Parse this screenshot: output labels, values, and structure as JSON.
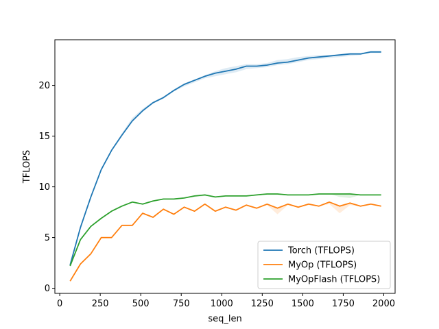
{
  "chart_data": {
    "type": "line",
    "title": "",
    "xlabel": "seq_len",
    "ylabel": "TFLOPS",
    "xlim": [
      -30,
      2070
    ],
    "ylim": [
      -0.5,
      24.5
    ],
    "xticks": [
      0,
      250,
      500,
      750,
      1000,
      1250,
      1500,
      1750,
      2000
    ],
    "yticks": [
      0,
      5,
      10,
      15,
      20
    ],
    "grid": false,
    "legend_position": "lower-right",
    "x": [
      64,
      128,
      192,
      256,
      320,
      384,
      448,
      512,
      576,
      640,
      704,
      768,
      832,
      896,
      960,
      1024,
      1088,
      1152,
      1216,
      1280,
      1344,
      1408,
      1472,
      1536,
      1600,
      1664,
      1728,
      1792,
      1856,
      1920,
      1984
    ],
    "series": [
      {
        "name": "Torch (TFLOPS)",
        "color": "#1f77b4",
        "values": [
          2.3,
          6.0,
          9.0,
          11.7,
          13.6,
          15.1,
          16.5,
          17.5,
          18.3,
          18.8,
          19.5,
          20.1,
          20.5,
          20.9,
          21.2,
          21.4,
          21.6,
          21.9,
          21.9,
          22.0,
          22.2,
          22.3,
          22.5,
          22.7,
          22.8,
          22.9,
          23.0,
          23.1,
          23.1,
          23.3,
          23.3
        ],
        "band_low": [
          2.3,
          6.0,
          9.0,
          11.7,
          13.6,
          15.0,
          16.4,
          17.4,
          18.2,
          18.7,
          19.4,
          19.9,
          20.3,
          20.7,
          20.9,
          21.1,
          21.3,
          21.6,
          21.7,
          21.8,
          22.0,
          22.1,
          22.3,
          22.5,
          22.6,
          22.7,
          22.8,
          22.9,
          23.0,
          23.2,
          23.2
        ],
        "band_high": [
          2.3,
          6.1,
          9.1,
          11.8,
          13.7,
          15.3,
          16.8,
          17.7,
          18.4,
          18.9,
          19.6,
          20.2,
          20.6,
          21.0,
          21.4,
          21.7,
          21.9,
          22.1,
          22.1,
          22.2,
          22.5,
          22.6,
          22.8,
          22.9,
          23.0,
          23.0,
          23.1,
          23.2,
          23.2,
          23.4,
          23.4
        ]
      },
      {
        "name": "MyOp (TFLOPS)",
        "color": "#ff7f0e",
        "values": [
          0.7,
          2.4,
          3.4,
          5.0,
          5.0,
          6.2,
          6.2,
          7.4,
          7.0,
          7.8,
          7.3,
          8.0,
          7.6,
          8.3,
          7.6,
          8.0,
          7.7,
          8.2,
          7.9,
          8.3,
          7.9,
          8.3,
          8.0,
          8.3,
          8.1,
          8.5,
          8.1,
          8.4,
          8.1,
          8.3,
          8.1
        ],
        "band_low": [
          0.7,
          2.4,
          3.4,
          5.0,
          5.0,
          6.2,
          6.2,
          7.4,
          7.0,
          7.8,
          7.3,
          8.0,
          7.6,
          8.3,
          7.6,
          8.0,
          7.7,
          8.2,
          7.9,
          8.2,
          7.3,
          8.2,
          8.0,
          8.2,
          8.1,
          8.3,
          7.4,
          8.2,
          8.1,
          8.3,
          8.1
        ],
        "band_high": [
          0.7,
          2.4,
          3.4,
          5.0,
          5.0,
          6.2,
          6.2,
          7.4,
          7.0,
          7.8,
          7.3,
          8.0,
          7.6,
          8.3,
          7.6,
          8.0,
          7.7,
          8.2,
          7.9,
          8.3,
          8.0,
          8.3,
          8.0,
          8.3,
          8.1,
          8.5,
          8.2,
          8.4,
          8.1,
          8.3,
          8.1
        ]
      },
      {
        "name": "MyOpFlash (TFLOPS)",
        "color": "#2ca02c",
        "values": [
          2.2,
          4.8,
          6.1,
          6.9,
          7.6,
          8.1,
          8.5,
          8.3,
          8.6,
          8.8,
          8.8,
          8.9,
          9.1,
          9.2,
          9.0,
          9.1,
          9.1,
          9.1,
          9.2,
          9.3,
          9.3,
          9.2,
          9.2,
          9.2,
          9.3,
          9.3,
          9.3,
          9.3,
          9.2,
          9.2,
          9.2
        ],
        "band_low": [
          2.2,
          4.8,
          6.1,
          6.9,
          7.6,
          8.1,
          8.5,
          8.3,
          8.6,
          8.8,
          8.8,
          8.9,
          9.0,
          9.1,
          9.0,
          9.1,
          9.1,
          9.1,
          9.2,
          9.2,
          9.2,
          9.2,
          9.2,
          9.2,
          9.3,
          9.3,
          9.0,
          8.9,
          9.2,
          9.2,
          9.2
        ],
        "band_high": [
          2.2,
          4.8,
          6.1,
          6.9,
          7.6,
          8.1,
          8.5,
          8.3,
          8.6,
          8.8,
          8.8,
          8.9,
          9.1,
          9.2,
          9.0,
          9.1,
          9.1,
          9.1,
          9.2,
          9.3,
          9.3,
          9.2,
          9.2,
          9.2,
          9.3,
          9.3,
          9.3,
          9.4,
          9.2,
          9.2,
          9.2
        ]
      }
    ]
  }
}
